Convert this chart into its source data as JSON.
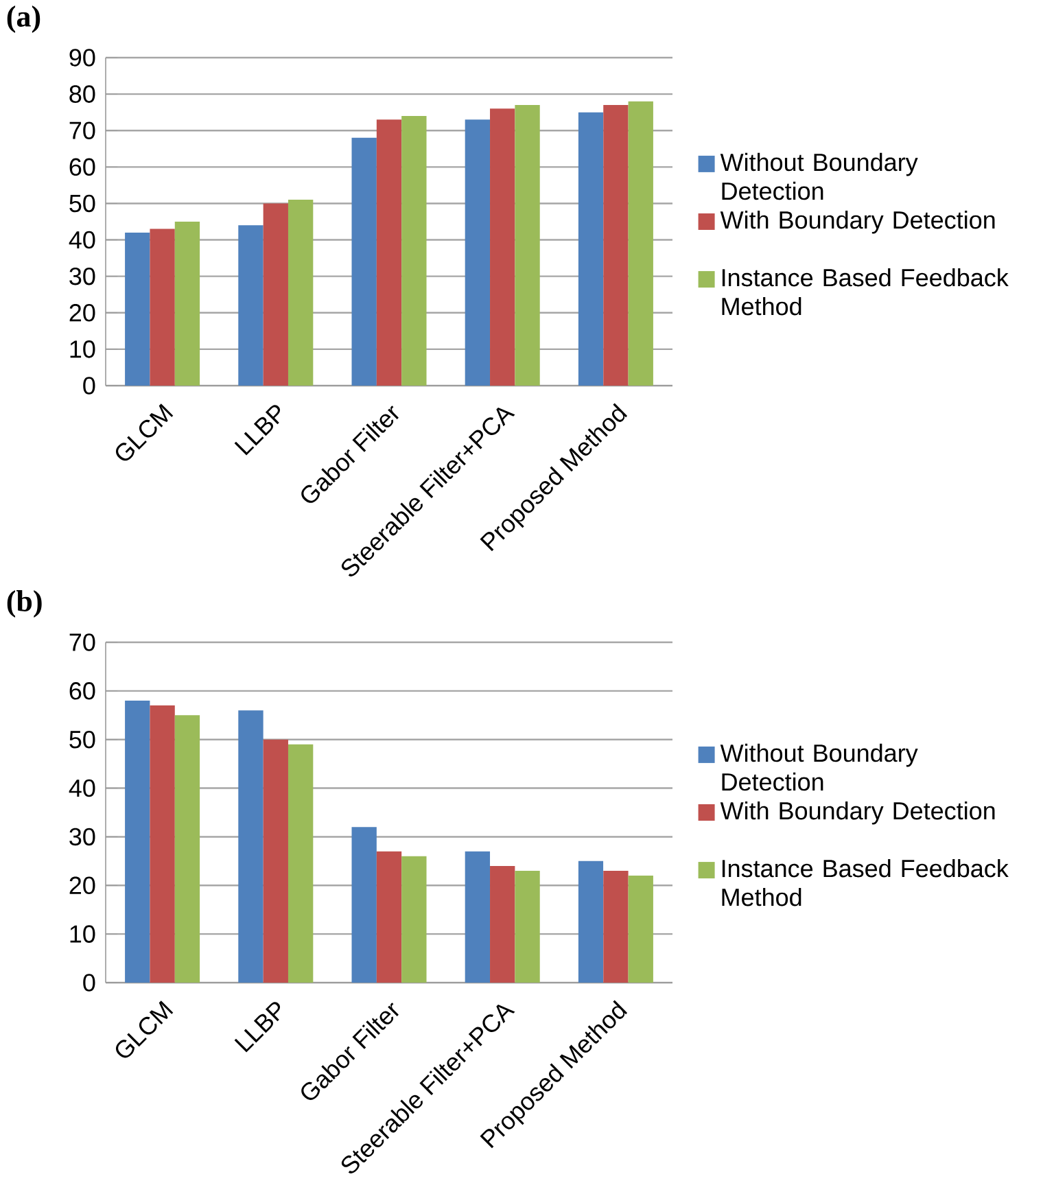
{
  "chart_data": [
    {
      "type": "bar",
      "title": "(a)",
      "categories": [
        "GLCM",
        "LLBP",
        "Gabor Filter",
        "Steerable Filter+PCA",
        "Proposed Method"
      ],
      "series": [
        {
          "name": "Without Boundary Detection",
          "color": "#4f81bd",
          "values": [
            42,
            44,
            68,
            73,
            75
          ]
        },
        {
          "name": "With Boundary Detection",
          "color": "#c0504d",
          "values": [
            43,
            50,
            73,
            76,
            77
          ]
        },
        {
          "name": "Instance Based  Feedback Method",
          "color": "#9bbb59",
          "values": [
            45,
            51,
            74,
            77,
            78
          ]
        }
      ],
      "ylim": [
        0,
        90
      ],
      "yticks": [
        0,
        10,
        20,
        30,
        40,
        50,
        60,
        70,
        80,
        90
      ],
      "grid": "y",
      "legend": "right"
    },
    {
      "type": "bar",
      "title": "(b)",
      "categories": [
        "GLCM",
        "LLBP",
        "Gabor Filter",
        "Steerable Filter+PCA",
        "Proposed Method"
      ],
      "series": [
        {
          "name": "Without Boundary Detection",
          "color": "#4f81bd",
          "values": [
            58,
            56,
            32,
            27,
            25
          ]
        },
        {
          "name": "With Boundary Detection",
          "color": "#c0504d",
          "values": [
            57,
            50,
            27,
            24,
            23
          ]
        },
        {
          "name": "Instance Based  Feedback Method",
          "color": "#9bbb59",
          "values": [
            55,
            49,
            26,
            23,
            22
          ]
        }
      ],
      "ylim": [
        0,
        70
      ],
      "yticks": [
        0,
        10,
        20,
        30,
        40,
        50,
        60,
        70
      ],
      "grid": "y",
      "legend": "right"
    }
  ]
}
